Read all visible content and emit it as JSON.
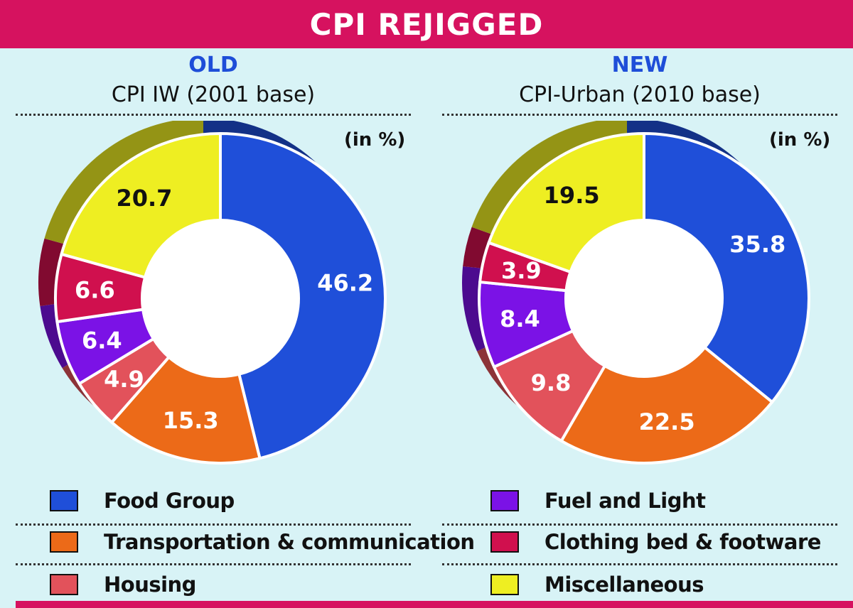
{
  "title": "CPI REJIGGED",
  "unit_label": "(in %)",
  "panels": [
    {
      "tag": "OLD",
      "subtitle": "CPI IW (2001 base)"
    },
    {
      "tag": "NEW",
      "subtitle": "CPI-Urban (2010 base)"
    }
  ],
  "colors": {
    "food": "#1f4fd9",
    "transport": "#ec6a18",
    "housing": "#e2525b",
    "fuel": "#7b12e6",
    "clothing": "#d0104e",
    "misc": "#eeee22",
    "banner": "#d6125f",
    "background": "#d8f3f6"
  },
  "legend": [
    {
      "key": "food",
      "label": "Food Group"
    },
    {
      "key": "transport",
      "label": "Transportation & communication"
    },
    {
      "key": "housing",
      "label": "Housing"
    },
    {
      "key": "fuel",
      "label": "Fuel and Light"
    },
    {
      "key": "clothing",
      "label": "Clothing bed & footware"
    },
    {
      "key": "misc",
      "label": "Miscellaneous"
    }
  ],
  "chart_data": [
    {
      "type": "pie",
      "title": "CPI IW (2001 base)",
      "units": "%",
      "categories": [
        "Food Group",
        "Transportation & communication",
        "Housing",
        "Fuel and Light",
        "Clothing bed & footware",
        "Miscellaneous"
      ],
      "values": [
        46.2,
        15.3,
        4.9,
        6.4,
        6.6,
        20.7
      ]
    },
    {
      "type": "pie",
      "title": "CPI-Urban (2010 base)",
      "units": "%",
      "categories": [
        "Food Group",
        "Transportation & communication",
        "Housing",
        "Fuel and Light",
        "Clothing bed & footware",
        "Miscellaneous"
      ],
      "values": [
        35.8,
        22.5,
        9.8,
        8.4,
        3.9,
        19.5
      ]
    }
  ]
}
